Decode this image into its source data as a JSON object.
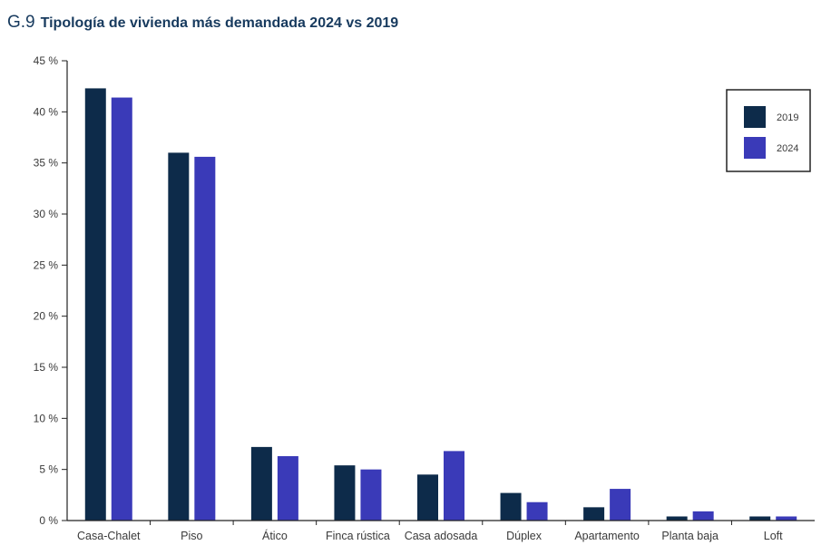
{
  "header": {
    "fig_number": "G.9",
    "title": "Tipología de vivienda más demandada 2024 vs 2019"
  },
  "colors": {
    "s2019": "#0d2b4a",
    "s2024": "#3a3ab8",
    "axis": "#222222"
  },
  "chart_data": {
    "type": "bar",
    "title": "Tipología de vivienda más demandada 2024 vs 2019",
    "categories": [
      "Casa-Chalet",
      "Piso",
      "Ático",
      "Finca rústica",
      "Casa adosada",
      "Dúplex",
      "Apartamento",
      "Planta baja",
      "Loft"
    ],
    "series": [
      {
        "name": "2019",
        "values": [
          42.3,
          36.0,
          7.2,
          5.4,
          4.5,
          2.7,
          1.3,
          0.4,
          0.4
        ]
      },
      {
        "name": "2024",
        "values": [
          41.4,
          35.6,
          6.3,
          5.0,
          6.8,
          1.8,
          3.1,
          0.9,
          0.4
        ]
      }
    ],
    "ylim": [
      0,
      45
    ],
    "yticks": [
      "0 %",
      "5 %",
      "10 %",
      "15 %",
      "20 %",
      "25 %",
      "30 %",
      "35 %",
      "40 %",
      "45 %"
    ],
    "legend_position": "top-right",
    "grid": false
  }
}
